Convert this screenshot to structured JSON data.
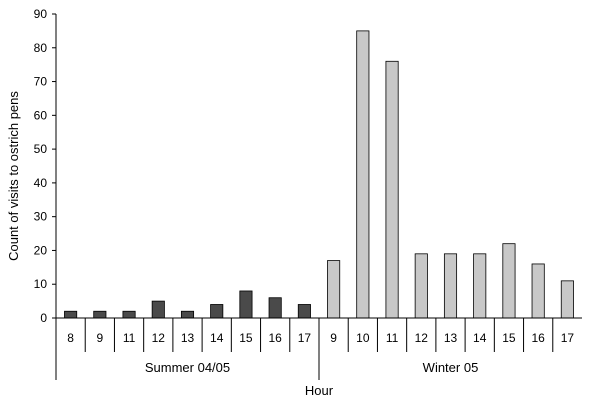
{
  "chart_data": {
    "type": "bar",
    "title": "",
    "xlabel": "Hour",
    "ylabel": "Count of visits to ostrich pens",
    "ylim": [
      0,
      90
    ],
    "yticks": [
      0,
      10,
      20,
      30,
      40,
      50,
      60,
      70,
      80,
      90
    ],
    "grid": false,
    "groups": [
      {
        "name": "Summer 04/05",
        "color": "#4a4a4a",
        "categories": [
          "8",
          "9",
          "11",
          "12",
          "13",
          "14",
          "15",
          "16",
          "17"
        ],
        "values": [
          2,
          2,
          2,
          5,
          2,
          4,
          8,
          6,
          4
        ]
      },
      {
        "name": "Winter 05",
        "color": "#c8c8c8",
        "categories": [
          "9",
          "10",
          "11",
          "12",
          "13",
          "14",
          "15",
          "16",
          "17"
        ],
        "values": [
          17,
          85,
          76,
          19,
          19,
          19,
          22,
          16,
          11
        ]
      }
    ]
  }
}
